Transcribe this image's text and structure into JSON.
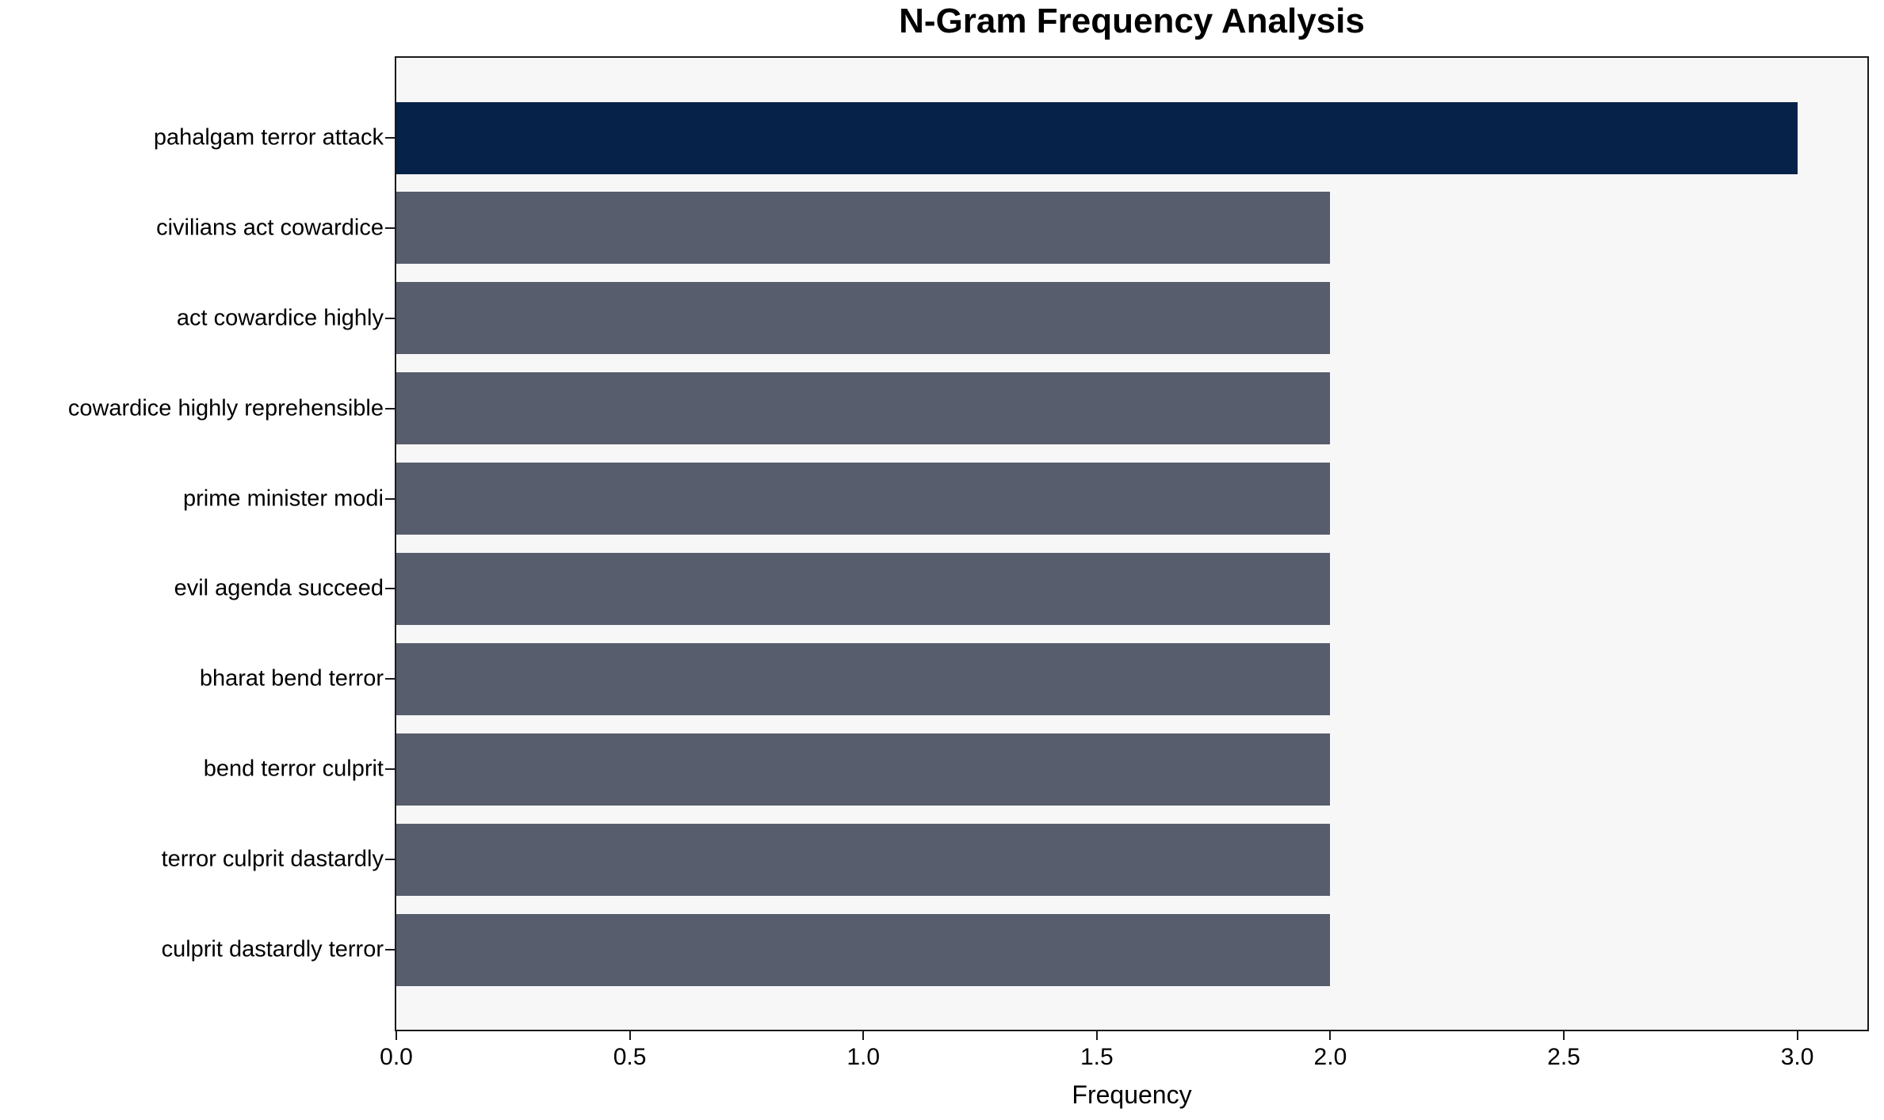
{
  "figure": {
    "background": "#ffffff",
    "plot_background": "#f7f7f8",
    "spine_color": "#1a1a1a"
  },
  "chart_data": {
    "type": "bar",
    "orientation": "horizontal",
    "title": "N-Gram Frequency Analysis",
    "xlabel": "Frequency",
    "ylabel": "",
    "categories": [
      "pahalgam terror attack",
      "civilians act cowardice",
      "act cowardice highly",
      "cowardice highly reprehensible",
      "prime minister modi",
      "evil agenda succeed",
      "bharat bend terror",
      "bend terror culprit",
      "terror culprit dastardly",
      "culprit dastardly terror"
    ],
    "values": [
      3,
      2,
      2,
      2,
      2,
      2,
      2,
      2,
      2,
      2
    ],
    "xlim": [
      0,
      3.15
    ],
    "xticks": [
      {
        "value": 0.0,
        "label": "0.0"
      },
      {
        "value": 0.5,
        "label": "0.5"
      },
      {
        "value": 1.0,
        "label": "1.0"
      },
      {
        "value": 1.5,
        "label": "1.5"
      },
      {
        "value": 2.0,
        "label": "2.0"
      },
      {
        "value": 2.5,
        "label": "2.5"
      },
      {
        "value": 3.0,
        "label": "3.0"
      }
    ],
    "grid": false,
    "legend": null,
    "bar_colors": {
      "highlight": "#062249",
      "default": "#575d6c"
    },
    "highlight_index": 0
  }
}
